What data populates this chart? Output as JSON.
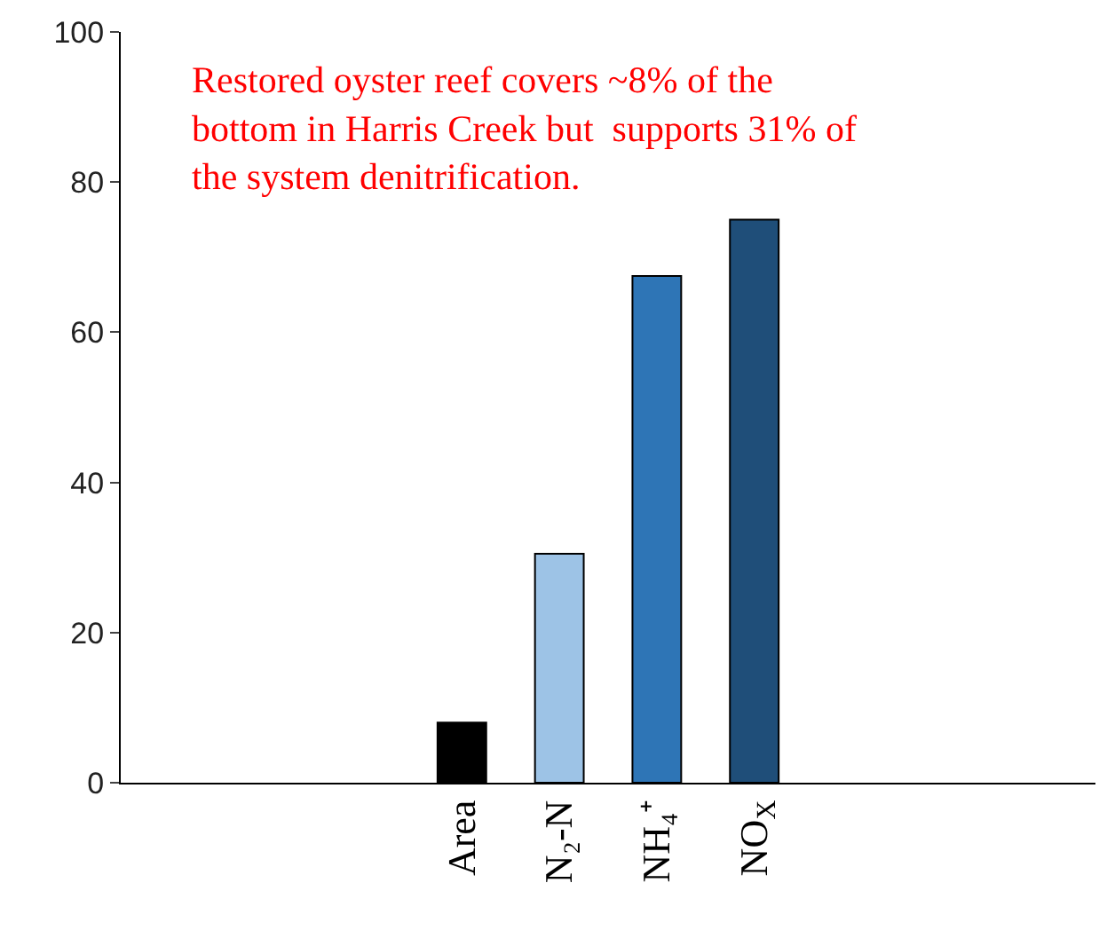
{
  "chart_data": {
    "type": "bar",
    "categories": [
      null,
      null,
      null,
      "Area",
      "N₂-N",
      "NH₄⁺",
      "NO$_{X}$",
      null,
      null,
      null
    ],
    "values": [
      null,
      null,
      null,
      8,
      30.5,
      67.5,
      75,
      null,
      null,
      null
    ],
    "colors": [
      "#000000",
      "#000000",
      "#000000",
      "#000000",
      "#9dc3e6",
      "#2e75b6",
      "#1f4e79",
      "#000000",
      "#000000",
      "#000000"
    ],
    "ylim": [
      0,
      100
    ],
    "yticks": [
      0,
      20,
      40,
      60,
      80,
      100
    ],
    "legend": false,
    "annotations": [
      "Restored oyster reef covers ~8% of the\nbottom in Harris Creek but  supports 31% of\nthe system denitrification."
    ]
  }
}
